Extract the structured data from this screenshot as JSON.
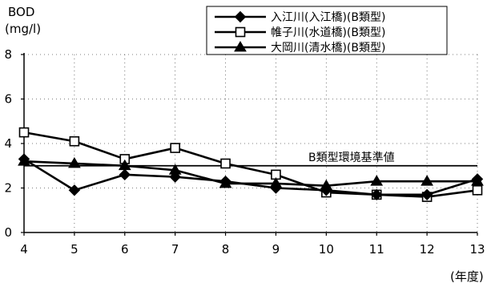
{
  "chart_data": {
    "type": "line",
    "ylabel": "BOD",
    "yunit": "(mg/l)",
    "xunit": "(年度)",
    "x": [
      4,
      5,
      6,
      7,
      8,
      9,
      10,
      11,
      12,
      13
    ],
    "xlim": [
      4,
      13
    ],
    "ylim": [
      0,
      8
    ],
    "yticks": [
      0,
      2,
      4,
      6,
      8
    ],
    "grid": true,
    "legend_position": "top-right",
    "series": [
      {
        "name": "入江川(入江橋)(B類型)",
        "marker": "diamond-filled",
        "values": [
          3.3,
          1.9,
          2.6,
          2.5,
          2.3,
          2.0,
          1.9,
          1.7,
          1.7,
          2.4
        ]
      },
      {
        "name": "帷子川(水道橋)(B類型)",
        "marker": "square-open",
        "values": [
          4.5,
          4.1,
          3.3,
          3.8,
          3.1,
          2.6,
          1.8,
          1.7,
          1.6,
          1.9
        ]
      },
      {
        "name": "大岡川(清水橋)(B類型)",
        "marker": "triangle-filled",
        "values": [
          3.2,
          3.1,
          3.0,
          2.8,
          2.2,
          2.2,
          2.1,
          2.3,
          2.3,
          2.3
        ]
      }
    ],
    "reference_line": {
      "label": "B類型環境基準値",
      "value": 3.0
    }
  }
}
